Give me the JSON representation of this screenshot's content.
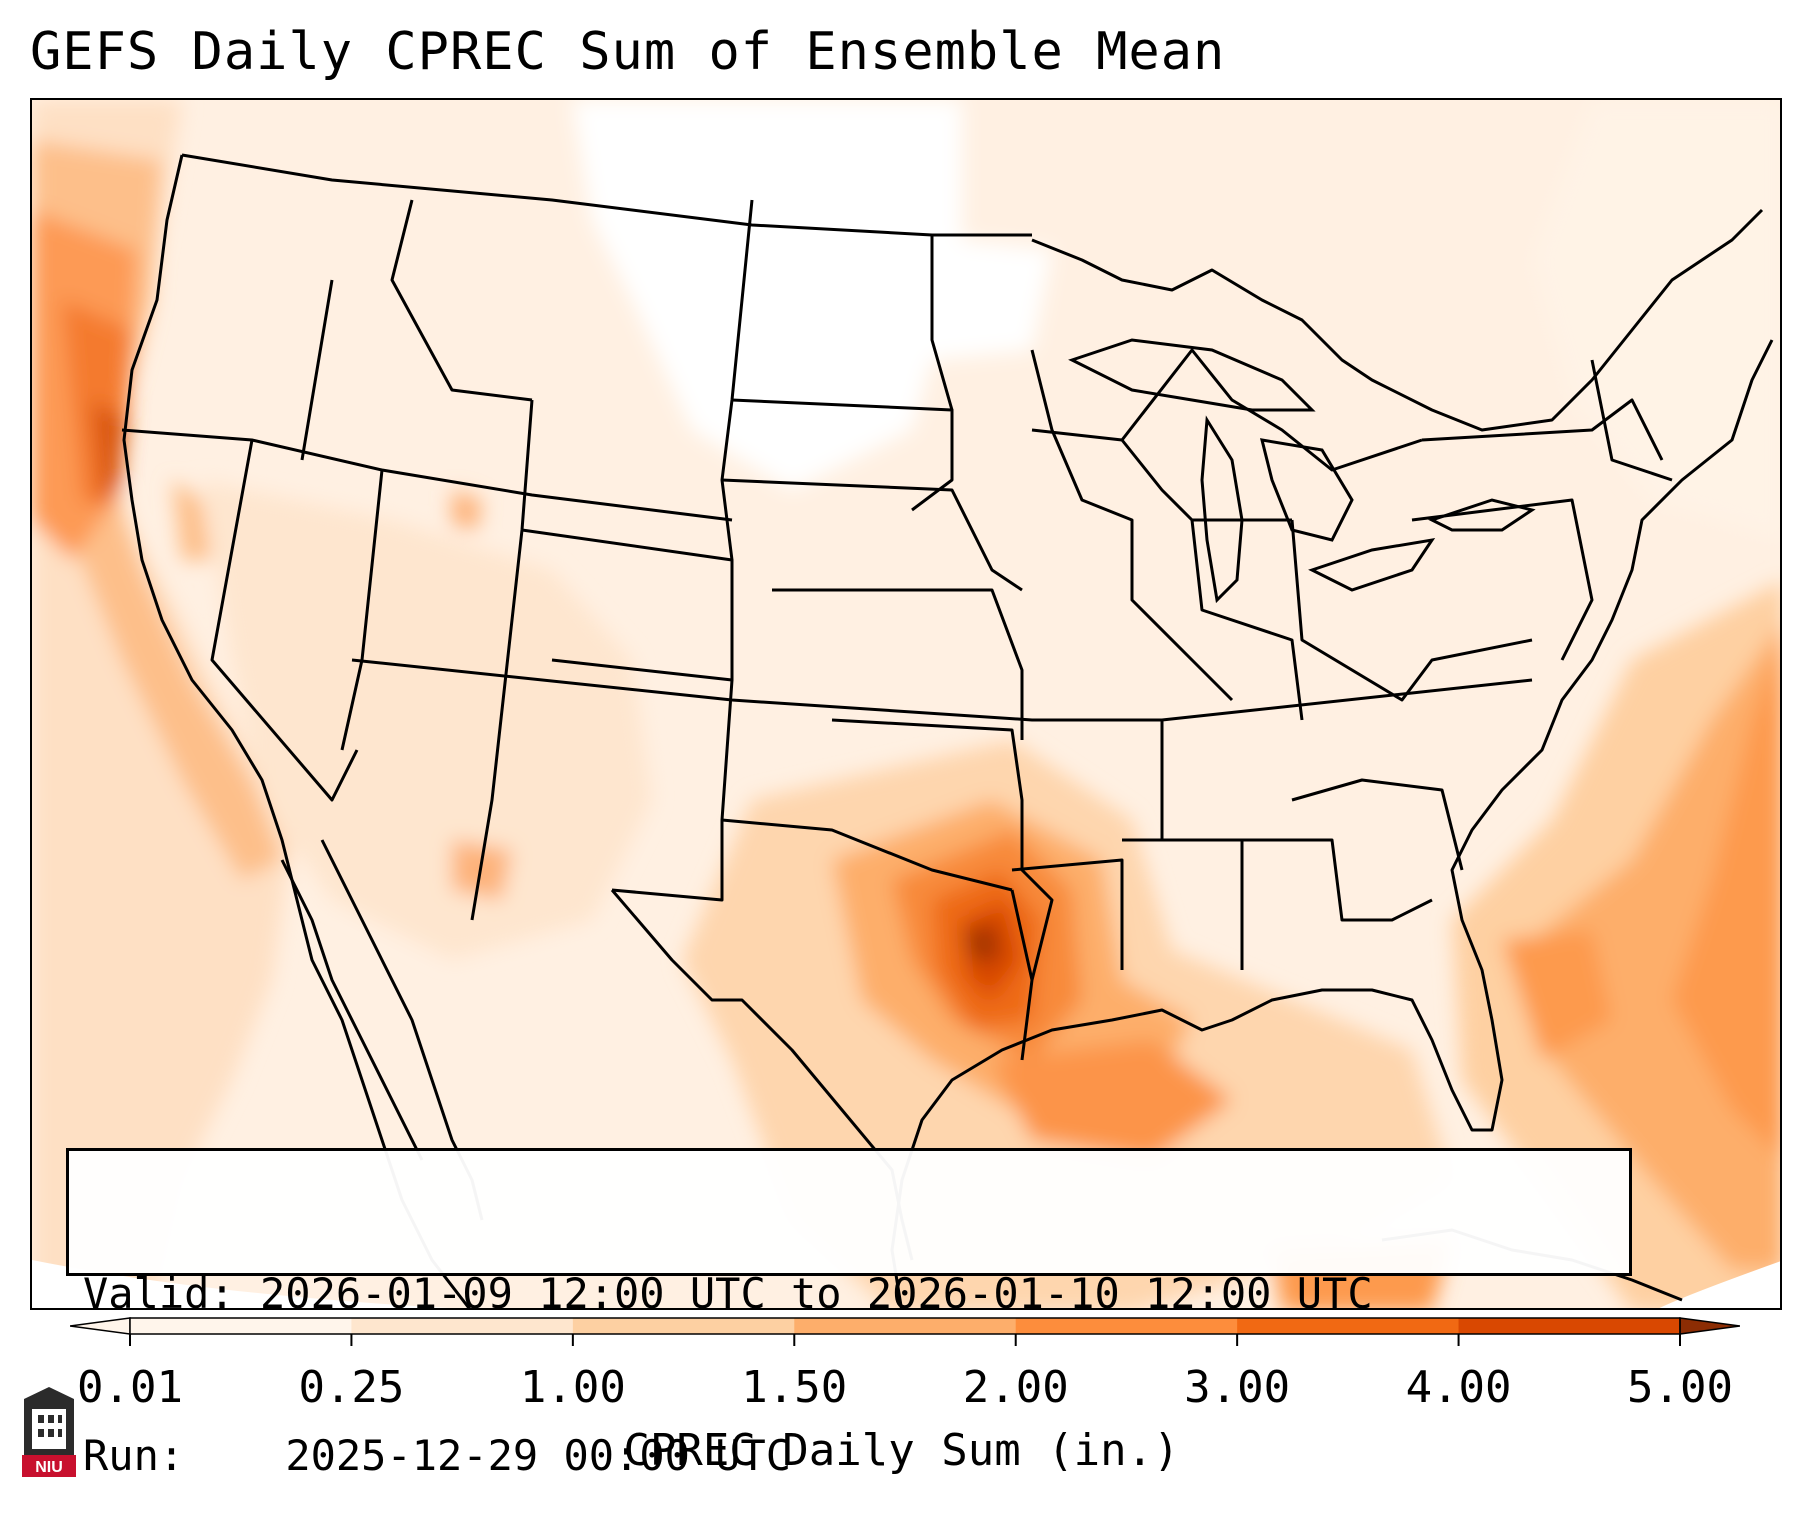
{
  "title": "GEFS Daily CPREC Sum of Ensemble Mean",
  "info": {
    "valid_label": "Valid:",
    "valid_value": "2026-01-09 12:00 UTC to 2026-01-10 12:00 UTC",
    "run_label": "Run:",
    "run_value": "2025-12-29 00:00 UTC"
  },
  "colorbar": {
    "label": "CPREC Daily Sum (in.)",
    "ticks": [
      "0.01",
      "0.25",
      "1.00",
      "1.50",
      "2.00",
      "3.00",
      "4.00",
      "5.00"
    ],
    "colors": [
      "#fff5eb",
      "#fee6ce",
      "#fdd0a2",
      "#fdae6b",
      "#fd8d3c",
      "#f16913",
      "#d94801",
      "#8c2d04"
    ],
    "extend": "both"
  },
  "logo": {
    "text": "NIU",
    "color": "#c8102e"
  },
  "map": {
    "projection": "lambert-conformal-conus",
    "features": [
      "coastlines",
      "us-states",
      "canada-provinces",
      "mexico-states",
      "great-lakes"
    ],
    "precip_max_region": "east-texas-louisiana-border"
  }
}
